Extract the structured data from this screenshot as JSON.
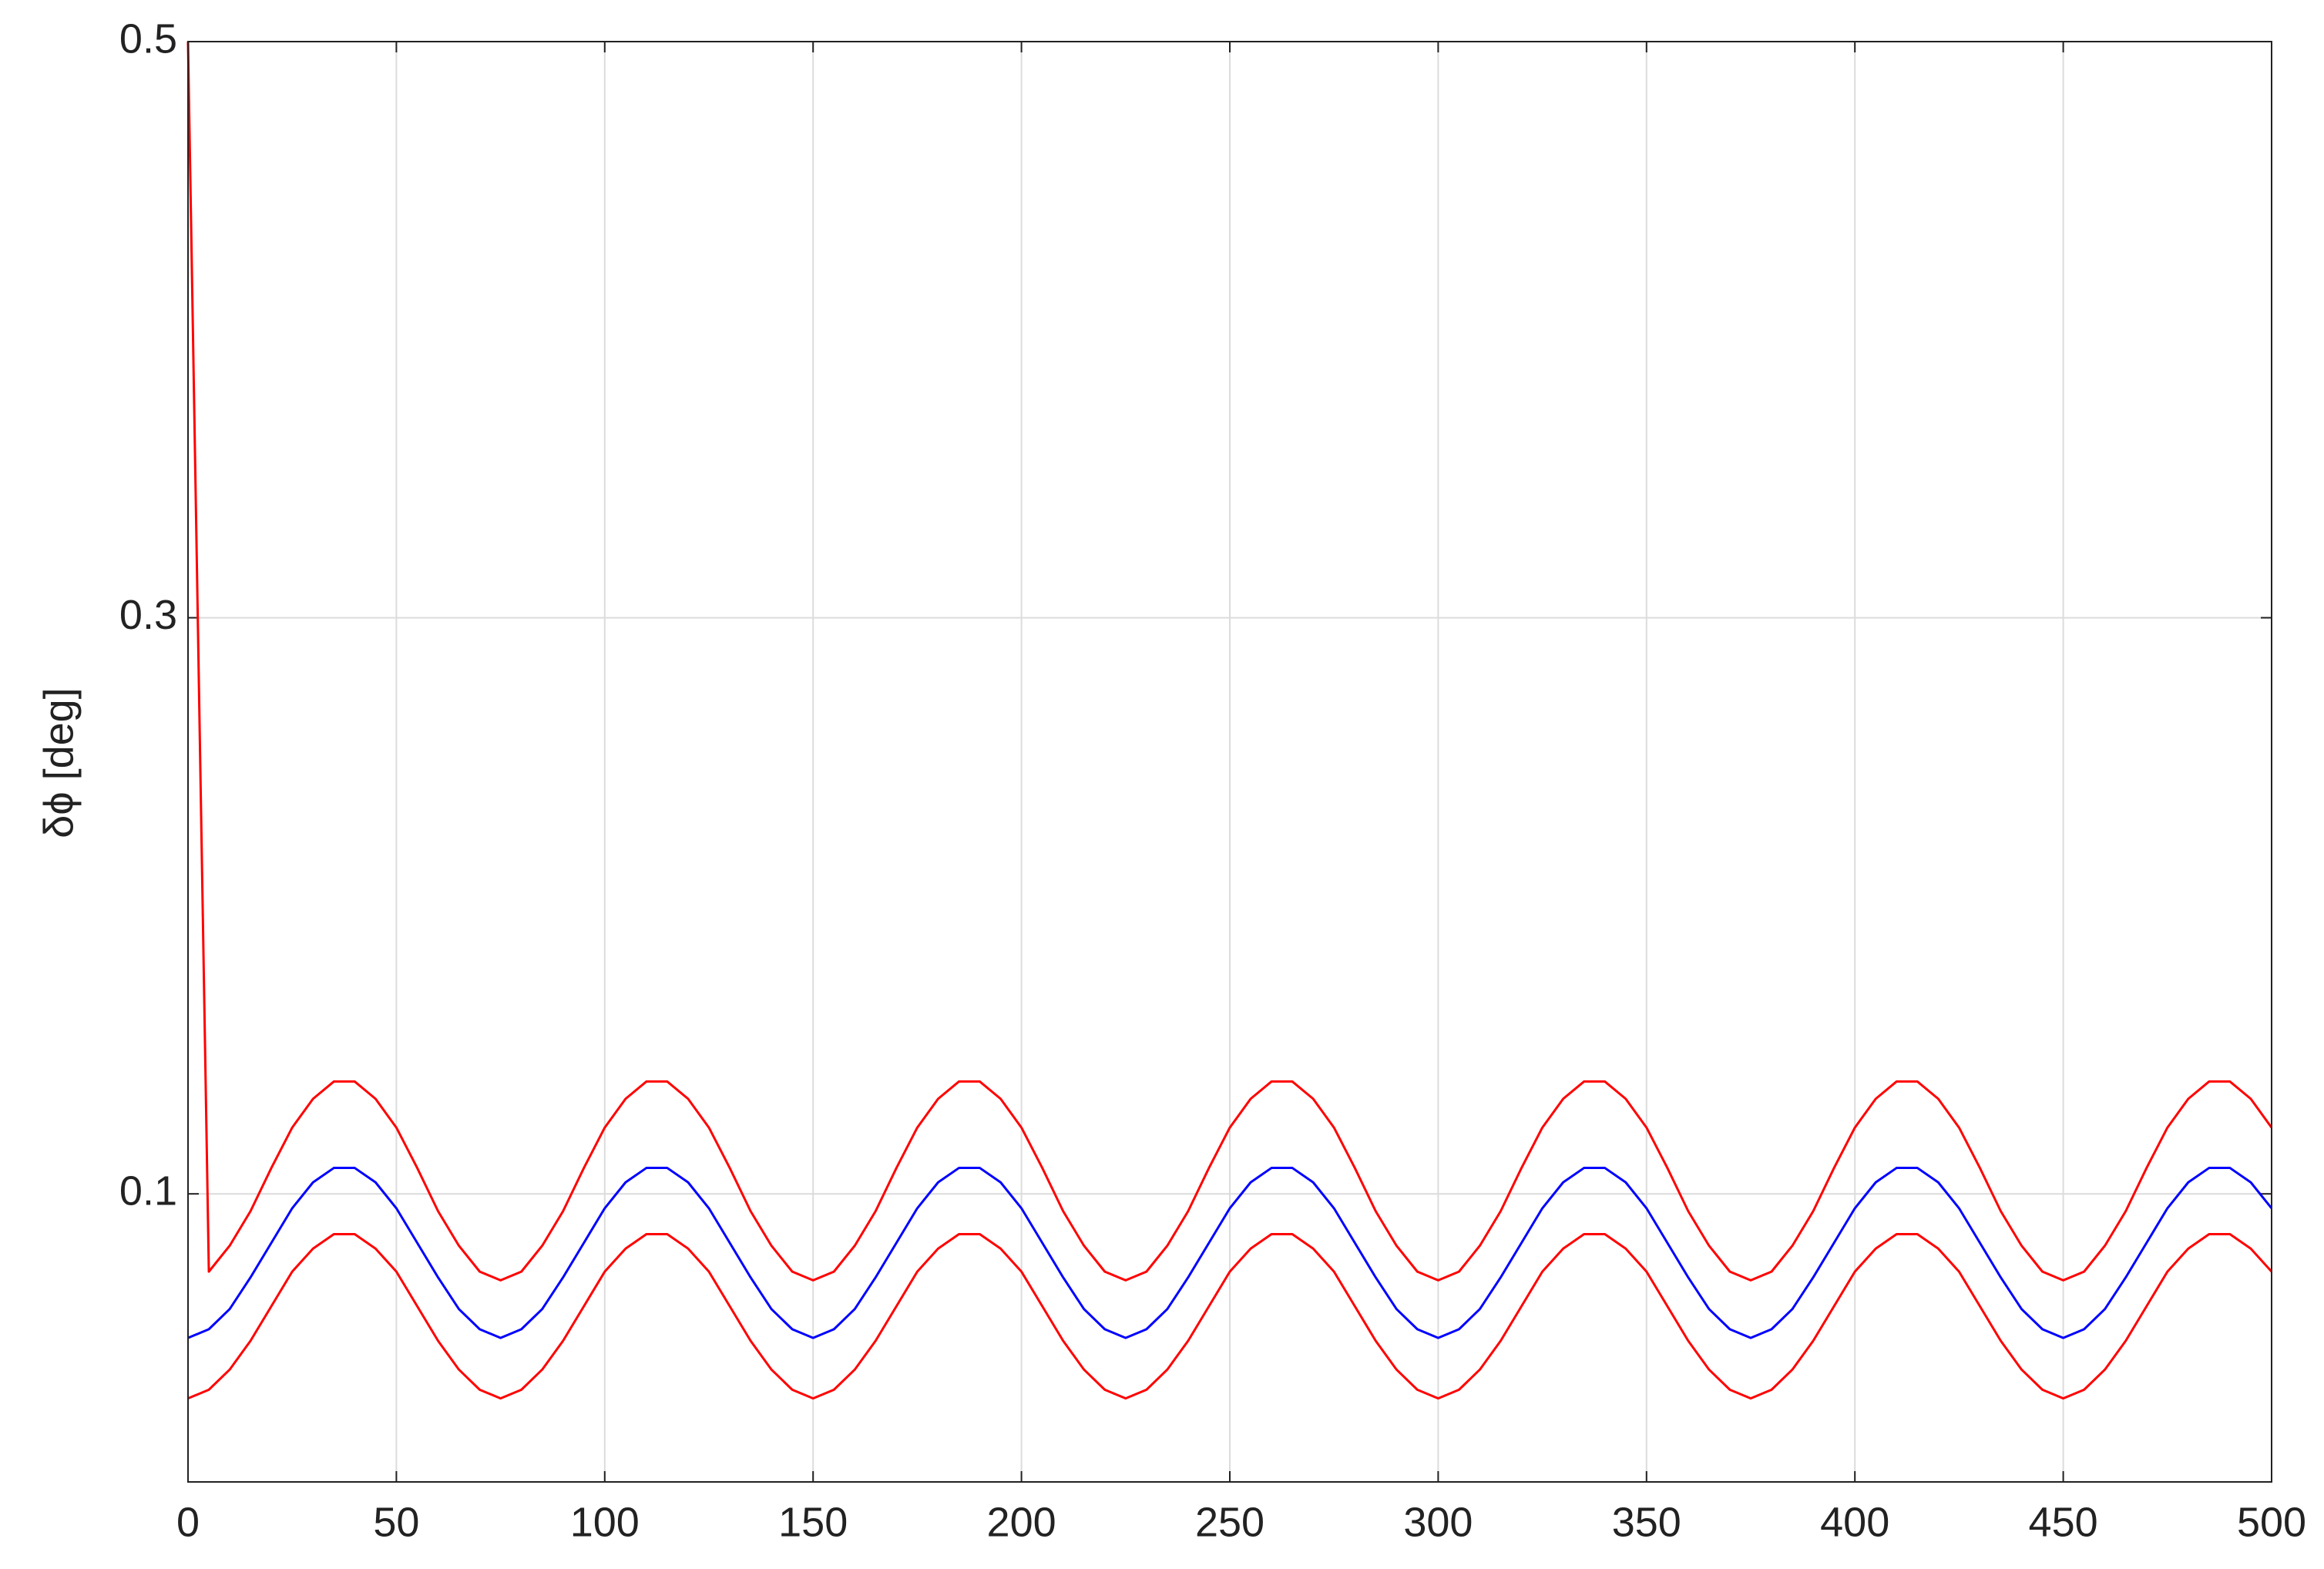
{
  "chart_data": {
    "type": "line",
    "y_label": "δϕ  [deg]",
    "x": [
      0,
      5,
      10,
      15,
      20,
      25,
      30,
      35,
      40,
      45,
      50,
      55,
      60,
      65,
      70,
      75,
      80,
      85,
      90,
      95,
      100,
      105,
      110,
      115,
      120,
      125,
      130,
      135,
      140,
      145,
      150,
      155,
      160,
      165,
      170,
      175,
      180,
      185,
      190,
      195,
      200,
      205,
      210,
      215,
      220,
      225,
      230,
      235,
      240,
      245,
      250,
      255,
      260,
      265,
      270,
      275,
      280,
      285,
      290,
      295,
      300,
      305,
      310,
      315,
      320,
      325,
      330,
      335,
      340,
      345,
      350,
      355,
      360,
      365,
      370,
      375,
      380,
      385,
      390,
      395,
      400,
      405,
      410,
      415,
      420,
      425,
      430,
      435,
      440,
      445,
      450,
      455,
      460,
      465,
      470,
      475,
      480,
      485,
      490,
      495,
      500
    ],
    "series": [
      {
        "color": "#ff0000",
        "values": [
          0.5,
          0.073,
          0.082,
          0.094,
          0.109,
          0.123,
          0.133,
          0.139,
          0.139,
          0.133,
          0.123,
          0.109,
          0.094,
          0.082,
          0.073,
          0.07,
          0.073,
          0.082,
          0.094,
          0.109,
          0.123,
          0.133,
          0.139,
          0.139,
          0.133,
          0.123,
          0.109,
          0.094,
          0.082,
          0.073,
          0.07,
          0.073,
          0.082,
          0.094,
          0.109,
          0.123,
          0.133,
          0.139,
          0.139,
          0.133,
          0.123,
          0.109,
          0.094,
          0.082,
          0.073,
          0.07,
          0.073,
          0.082,
          0.094,
          0.109,
          0.123,
          0.133,
          0.139,
          0.139,
          0.133,
          0.123,
          0.109,
          0.094,
          0.082,
          0.073,
          0.07,
          0.073,
          0.082,
          0.094,
          0.109,
          0.123,
          0.133,
          0.139,
          0.139,
          0.133,
          0.123,
          0.109,
          0.094,
          0.082,
          0.073,
          0.07,
          0.073,
          0.082,
          0.094,
          0.109,
          0.123,
          0.133,
          0.139,
          0.139,
          0.133,
          0.123,
          0.109,
          0.094,
          0.082,
          0.073,
          0.07,
          0.073,
          0.082,
          0.094,
          0.109,
          0.123,
          0.133,
          0.139,
          0.139,
          0.133,
          0.123
        ]
      },
      {
        "color": "#0000ff",
        "values": [
          0.05,
          0.053,
          0.06,
          0.071,
          0.083,
          0.095,
          0.104,
          0.109,
          0.109,
          0.104,
          0.095,
          0.083,
          0.071,
          0.06,
          0.053,
          0.05,
          0.053,
          0.06,
          0.071,
          0.083,
          0.095,
          0.104,
          0.109,
          0.109,
          0.104,
          0.095,
          0.083,
          0.071,
          0.06,
          0.053,
          0.05,
          0.053,
          0.06,
          0.071,
          0.083,
          0.095,
          0.104,
          0.109,
          0.109,
          0.104,
          0.095,
          0.083,
          0.071,
          0.06,
          0.053,
          0.05,
          0.053,
          0.06,
          0.071,
          0.083,
          0.095,
          0.104,
          0.109,
          0.109,
          0.104,
          0.095,
          0.083,
          0.071,
          0.06,
          0.053,
          0.05,
          0.053,
          0.06,
          0.071,
          0.083,
          0.095,
          0.104,
          0.109,
          0.109,
          0.104,
          0.095,
          0.083,
          0.071,
          0.06,
          0.053,
          0.05,
          0.053,
          0.06,
          0.071,
          0.083,
          0.095,
          0.104,
          0.109,
          0.109,
          0.104,
          0.095,
          0.083,
          0.071,
          0.06,
          0.053,
          0.05,
          0.053,
          0.06,
          0.071,
          0.083,
          0.095,
          0.104,
          0.109,
          0.109,
          0.104,
          0.095
        ]
      },
      {
        "color": "#ff0000",
        "values": [
          0.029,
          0.032,
          0.039,
          0.049,
          0.061,
          0.073,
          0.081,
          0.086,
          0.086,
          0.081,
          0.073,
          0.061,
          0.049,
          0.039,
          0.032,
          0.029,
          0.032,
          0.039,
          0.049,
          0.061,
          0.073,
          0.081,
          0.086,
          0.086,
          0.081,
          0.073,
          0.061,
          0.049,
          0.039,
          0.032,
          0.029,
          0.032,
          0.039,
          0.049,
          0.061,
          0.073,
          0.081,
          0.086,
          0.086,
          0.081,
          0.073,
          0.061,
          0.049,
          0.039,
          0.032,
          0.029,
          0.032,
          0.039,
          0.049,
          0.061,
          0.073,
          0.081,
          0.086,
          0.086,
          0.081,
          0.073,
          0.061,
          0.049,
          0.039,
          0.032,
          0.029,
          0.032,
          0.039,
          0.049,
          0.061,
          0.073,
          0.081,
          0.086,
          0.086,
          0.081,
          0.073,
          0.061,
          0.049,
          0.039,
          0.032,
          0.029,
          0.032,
          0.039,
          0.049,
          0.061,
          0.073,
          0.081,
          0.086,
          0.086,
          0.081,
          0.073,
          0.061,
          0.049,
          0.039,
          0.032,
          0.029,
          0.032,
          0.039,
          0.049,
          0.061,
          0.073,
          0.081,
          0.086,
          0.086,
          0.081,
          0.073
        ]
      }
    ],
    "xlim": [
      0,
      500
    ],
    "ylim": [
      0,
      0.5
    ],
    "xticks": [
      0,
      50,
      100,
      150,
      200,
      250,
      300,
      350,
      400,
      450,
      500
    ],
    "yticks": [
      0.1,
      0.3,
      0.5
    ],
    "grid": true
  }
}
